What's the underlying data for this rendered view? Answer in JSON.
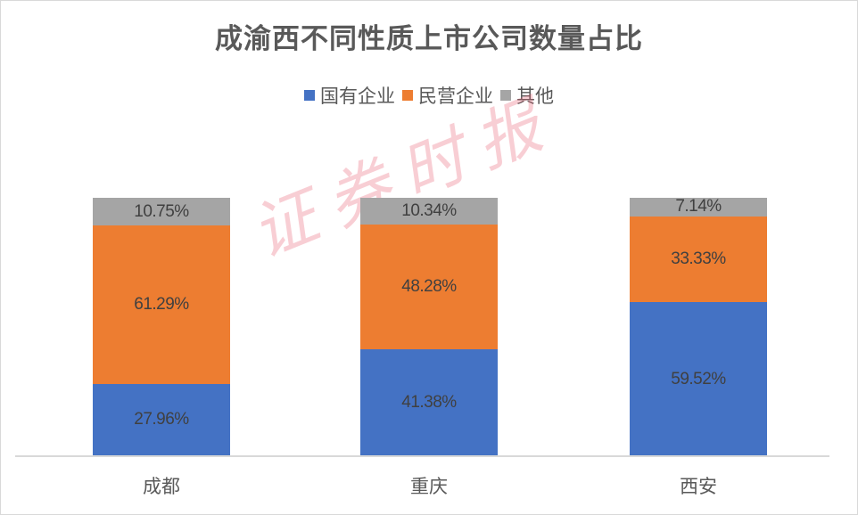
{
  "chart_data": {
    "type": "bar",
    "stacked": true,
    "percent_stacked": true,
    "title": "成渝西不同性质上市公司数量占比",
    "categories": [
      "成都",
      "重庆",
      "西安"
    ],
    "series": [
      {
        "name": "国有企业",
        "color": "#4472c4",
        "values": [
          27.96,
          41.38,
          59.52
        ],
        "labels": [
          "27.96%",
          "41.38%",
          "59.52%"
        ]
      },
      {
        "name": "民营企业",
        "color": "#ed7d31",
        "values": [
          61.29,
          48.28,
          33.33
        ],
        "labels": [
          "61.29%",
          "48.28%",
          "33.33%"
        ]
      },
      {
        "name": "其他",
        "color": "#a5a5a5",
        "values": [
          10.75,
          10.34,
          7.14
        ],
        "labels": [
          "10.75%",
          "10.34%",
          "7.14%"
        ]
      }
    ],
    "xlabel": "",
    "ylabel": "",
    "ylim": [
      0,
      100
    ],
    "grid": false,
    "legend_position": "top"
  },
  "title": "成渝西不同性质上市公司数量占比",
  "legend": [
    {
      "label": "国有企业",
      "color": "#4472c4"
    },
    {
      "label": "民营企业",
      "color": "#ed7d31"
    },
    {
      "label": "其他",
      "color": "#a5a5a5"
    }
  ],
  "watermark": "证券时报"
}
